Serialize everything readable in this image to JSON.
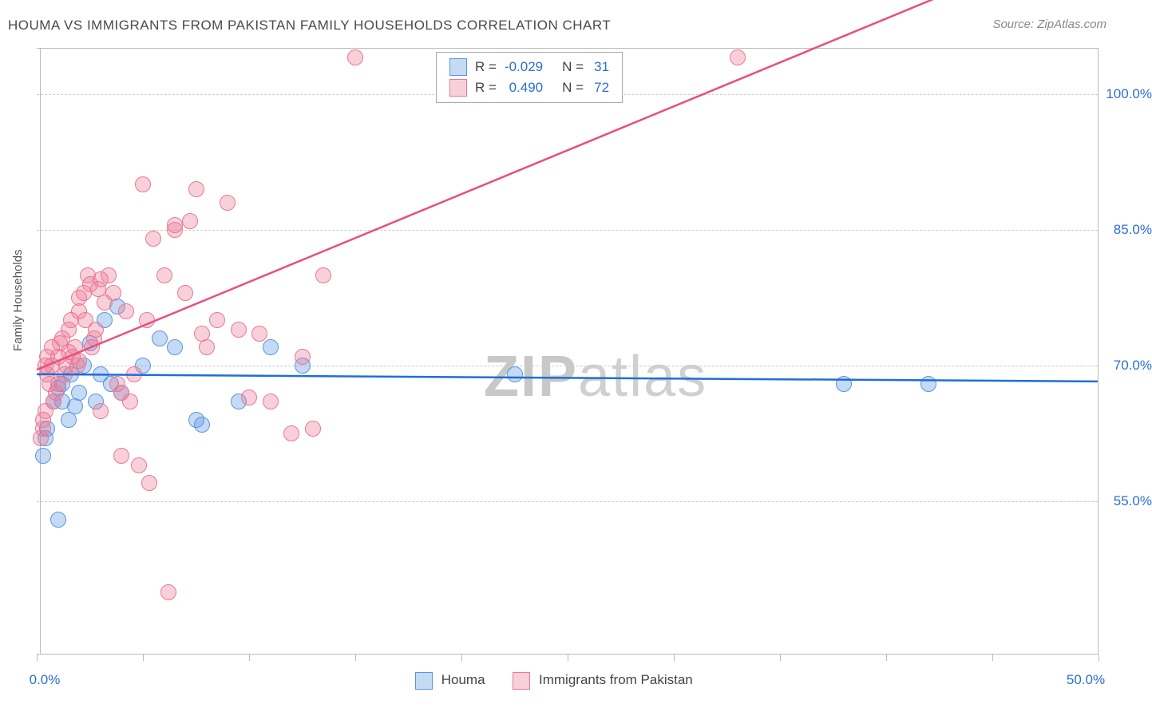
{
  "title": "HOUMA VS IMMIGRANTS FROM PAKISTAN FAMILY HOUSEHOLDS CORRELATION CHART",
  "source": "Source: ZipAtlas.com",
  "y_axis_title": "Family Households",
  "watermark": {
    "part1": "ZIP",
    "part2": "atlas"
  },
  "chart": {
    "type": "scatter",
    "xlim": [
      0,
      50
    ],
    "ylim": [
      38,
      105
    ],
    "y_ticks": [
      55.0,
      70.0,
      85.0,
      100.0
    ],
    "y_tick_labels": [
      "55.0%",
      "70.0%",
      "85.0%",
      "100.0%"
    ],
    "x_ticks": [
      0,
      5,
      10,
      15,
      20,
      25,
      30,
      35,
      40,
      45,
      50
    ],
    "x_tick_labels": {
      "0": "0.0%",
      "50": "50.0%"
    },
    "background_color": "#ffffff",
    "grid_color": "#cccccc",
    "marker_radius": 10,
    "marker_opacity": 0.55,
    "series": [
      {
        "name": "Houma",
        "color_fill": "rgba(90,150,225,0.35)",
        "color_stroke": "#5a96e1",
        "trend_color": "#1f6fd6",
        "trend_width": 2.5,
        "R": "-0.029",
        "N": "31",
        "trend": {
          "y_at_x0": 69.0,
          "y_at_x50": 68.2
        },
        "points": [
          [
            0.3,
            60.0
          ],
          [
            0.4,
            62.0
          ],
          [
            0.5,
            63.0
          ],
          [
            0.8,
            66.0
          ],
          [
            1.0,
            67.5
          ],
          [
            1.2,
            68.0
          ],
          [
            1.2,
            66.0
          ],
          [
            1.5,
            64.0
          ],
          [
            1.6,
            69.0
          ],
          [
            1.8,
            65.5
          ],
          [
            2.0,
            67.0
          ],
          [
            2.2,
            70.0
          ],
          [
            2.5,
            72.5
          ],
          [
            2.8,
            66.0
          ],
          [
            3.0,
            69.0
          ],
          [
            3.2,
            75.0
          ],
          [
            3.5,
            68.0
          ],
          [
            3.8,
            76.5
          ],
          [
            4.0,
            67.0
          ],
          [
            1.0,
            53.0
          ],
          [
            5.0,
            70.0
          ],
          [
            5.8,
            73.0
          ],
          [
            6.5,
            72.0
          ],
          [
            7.5,
            64.0
          ],
          [
            7.8,
            63.5
          ],
          [
            9.5,
            66.0
          ],
          [
            11.0,
            72.0
          ],
          [
            12.5,
            70.0
          ],
          [
            22.5,
            69.0
          ],
          [
            38.0,
            68.0
          ],
          [
            42.0,
            68.0
          ]
        ]
      },
      {
        "name": "Immigrants from Pakistan",
        "color_fill": "rgba(235,120,150,0.35)",
        "color_stroke": "#eb7896",
        "trend_color": "#e84f82",
        "trend_width": 2.5,
        "R": "0.490",
        "N": "72",
        "trend": {
          "y_at_x0": 69.5,
          "y_at_x50": 118.0
        },
        "points": [
          [
            0.2,
            62.0
          ],
          [
            0.3,
            63.0
          ],
          [
            0.3,
            64.0
          ],
          [
            0.4,
            65.0
          ],
          [
            0.4,
            70.0
          ],
          [
            0.5,
            71.0
          ],
          [
            0.5,
            69.0
          ],
          [
            0.6,
            68.0
          ],
          [
            0.7,
            72.0
          ],
          [
            0.7,
            70.0
          ],
          [
            0.8,
            66.0
          ],
          [
            0.9,
            67.0
          ],
          [
            1.0,
            68.0
          ],
          [
            1.0,
            71.0
          ],
          [
            1.1,
            72.5
          ],
          [
            1.2,
            73.0
          ],
          [
            1.3,
            69.0
          ],
          [
            1.4,
            70.0
          ],
          [
            1.5,
            74.0
          ],
          [
            1.6,
            75.0
          ],
          [
            1.7,
            71.0
          ],
          [
            1.8,
            72.0
          ],
          [
            1.9,
            70.0
          ],
          [
            2.0,
            76.0
          ],
          [
            2.0,
            77.5
          ],
          [
            2.2,
            78.0
          ],
          [
            2.3,
            75.0
          ],
          [
            2.4,
            80.0
          ],
          [
            2.5,
            79.0
          ],
          [
            2.6,
            72.0
          ],
          [
            2.7,
            73.0
          ],
          [
            2.8,
            74.0
          ],
          [
            2.9,
            78.5
          ],
          [
            3.0,
            79.5
          ],
          [
            3.2,
            77.0
          ],
          [
            3.4,
            80.0
          ],
          [
            3.6,
            78.0
          ],
          [
            3.8,
            68.0
          ],
          [
            4.0,
            67.0
          ],
          [
            4.2,
            76.0
          ],
          [
            4.4,
            66.0
          ],
          [
            4.6,
            69.0
          ],
          [
            4.8,
            59.0
          ],
          [
            5.0,
            90.0
          ],
          [
            5.2,
            75.0
          ],
          [
            5.5,
            84.0
          ],
          [
            5.3,
            57.0
          ],
          [
            6.0,
            80.0
          ],
          [
            6.5,
            85.5
          ],
          [
            6.5,
            85.0
          ],
          [
            7.0,
            78.0
          ],
          [
            7.2,
            86.0
          ],
          [
            7.5,
            89.5
          ],
          [
            7.8,
            73.5
          ],
          [
            8.0,
            72.0
          ],
          [
            8.5,
            75.0
          ],
          [
            9.0,
            88.0
          ],
          [
            9.5,
            74.0
          ],
          [
            10.0,
            66.5
          ],
          [
            10.5,
            73.5
          ],
          [
            11.0,
            66.0
          ],
          [
            12.0,
            62.5
          ],
          [
            12.5,
            71.0
          ],
          [
            13.0,
            63.0
          ],
          [
            13.5,
            80.0
          ],
          [
            15.0,
            104.0
          ],
          [
            6.2,
            45.0
          ],
          [
            4.0,
            60.0
          ],
          [
            3.0,
            65.0
          ],
          [
            2.0,
            70.5
          ],
          [
            1.5,
            71.5
          ],
          [
            33.0,
            104.0
          ]
        ]
      }
    ]
  },
  "legend_top": {
    "R_label": "R =",
    "N_label": "N ="
  },
  "legend_bottom": {
    "items": [
      "Houma",
      "Immigrants from Pakistan"
    ]
  },
  "colors": {
    "title": "#4a4a4a",
    "axis_label": "#2b6fd4",
    "legend_value": "#2b6fd4"
  }
}
